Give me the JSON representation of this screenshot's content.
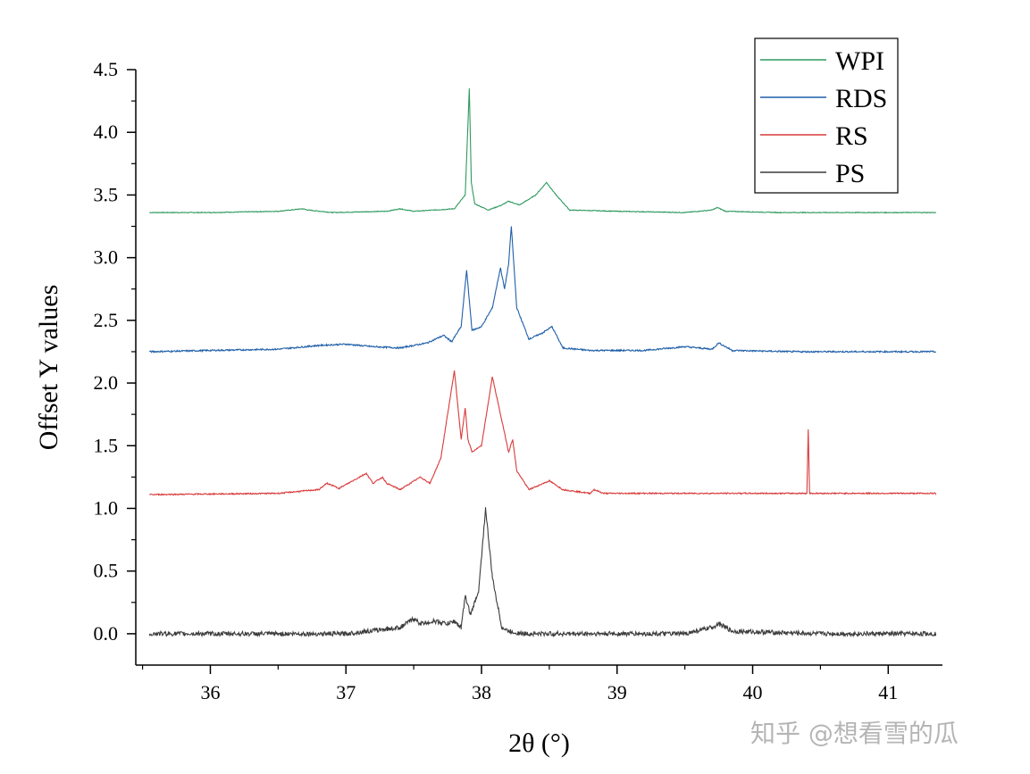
{
  "chart_data": {
    "type": "line",
    "title": "",
    "xlabel": "2θ (°)",
    "ylabel": "Offset Y values",
    "xlim": [
      35.45,
      41.4
    ],
    "ylim": [
      -0.25,
      4.5
    ],
    "x_ticks": [
      36,
      37,
      38,
      39,
      40,
      41
    ],
    "y_ticks": [
      "0.0",
      "0.5",
      "1.0",
      "1.5",
      "2.0",
      "2.5",
      "3.0",
      "3.5",
      "4.0",
      "4.5"
    ],
    "legend_position": "top-right",
    "series": [
      {
        "name": "WPI",
        "color": "#2e9a5e",
        "x": [
          35.55,
          36.0,
          36.5,
          36.68,
          36.72,
          36.9,
          37.3,
          37.4,
          37.5,
          37.8,
          37.88,
          37.91,
          37.925,
          37.95,
          38.05,
          38.15,
          38.2,
          38.28,
          38.4,
          38.48,
          38.55,
          38.65,
          39.0,
          39.5,
          39.7,
          39.74,
          39.8,
          40.2,
          41.35
        ],
        "values": [
          3.36,
          3.36,
          3.37,
          3.39,
          3.38,
          3.36,
          3.37,
          3.39,
          3.37,
          3.39,
          3.5,
          4.35,
          3.6,
          3.43,
          3.38,
          3.42,
          3.45,
          3.42,
          3.5,
          3.6,
          3.5,
          3.38,
          3.37,
          3.36,
          3.38,
          3.4,
          3.37,
          3.36,
          3.36
        ]
      },
      {
        "name": "RDS",
        "color": "#1f5fa8",
        "x": [
          35.55,
          36.0,
          36.5,
          36.8,
          37.0,
          37.2,
          37.4,
          37.6,
          37.72,
          37.78,
          37.85,
          37.89,
          37.93,
          38.0,
          38.08,
          38.14,
          38.17,
          38.2,
          38.22,
          38.26,
          38.35,
          38.45,
          38.52,
          38.6,
          38.8,
          39.2,
          39.5,
          39.7,
          39.75,
          39.85,
          40.3,
          41.35
        ],
        "values": [
          2.25,
          2.26,
          2.27,
          2.3,
          2.31,
          2.29,
          2.28,
          2.32,
          2.38,
          2.33,
          2.45,
          2.9,
          2.42,
          2.45,
          2.6,
          2.92,
          2.75,
          2.95,
          3.25,
          2.6,
          2.35,
          2.4,
          2.45,
          2.28,
          2.26,
          2.26,
          2.29,
          2.27,
          2.32,
          2.26,
          2.25,
          2.25
        ]
      },
      {
        "name": "RS",
        "color": "#d93a3a",
        "x": [
          35.55,
          36.5,
          36.8,
          36.86,
          36.95,
          37.1,
          37.15,
          37.2,
          37.27,
          37.3,
          37.4,
          37.55,
          37.62,
          37.7,
          37.8,
          37.85,
          37.88,
          37.9,
          37.93,
          38.0,
          38.08,
          38.15,
          38.2,
          38.23,
          38.26,
          38.35,
          38.5,
          38.6,
          38.8,
          38.83,
          38.9,
          39.5,
          40.4,
          40.41,
          40.42,
          41.35
        ],
        "values": [
          1.11,
          1.12,
          1.15,
          1.2,
          1.16,
          1.25,
          1.28,
          1.2,
          1.25,
          1.2,
          1.15,
          1.25,
          1.2,
          1.4,
          2.1,
          1.55,
          1.8,
          1.55,
          1.45,
          1.5,
          2.05,
          1.7,
          1.45,
          1.55,
          1.3,
          1.15,
          1.22,
          1.15,
          1.12,
          1.15,
          1.12,
          1.12,
          1.12,
          1.63,
          1.12,
          1.12
        ]
      },
      {
        "name": "PS",
        "color": "#3c3c3c",
        "x": [
          35.55,
          36.5,
          37.0,
          37.4,
          37.5,
          37.55,
          37.65,
          37.75,
          37.8,
          37.85,
          37.88,
          37.92,
          37.98,
          38.03,
          38.08,
          38.15,
          38.2,
          38.3,
          38.8,
          39.5,
          39.7,
          39.75,
          39.85,
          40.5,
          41.35
        ],
        "values": [
          0.0,
          0.0,
          0.0,
          0.05,
          0.12,
          0.08,
          0.1,
          0.08,
          0.1,
          0.05,
          0.3,
          0.15,
          0.35,
          1.0,
          0.45,
          0.05,
          0.02,
          0.0,
          0.0,
          0.0,
          0.05,
          0.08,
          0.02,
          0.0,
          0.0
        ]
      }
    ]
  },
  "watermark": "知乎 @想看雪的瓜"
}
